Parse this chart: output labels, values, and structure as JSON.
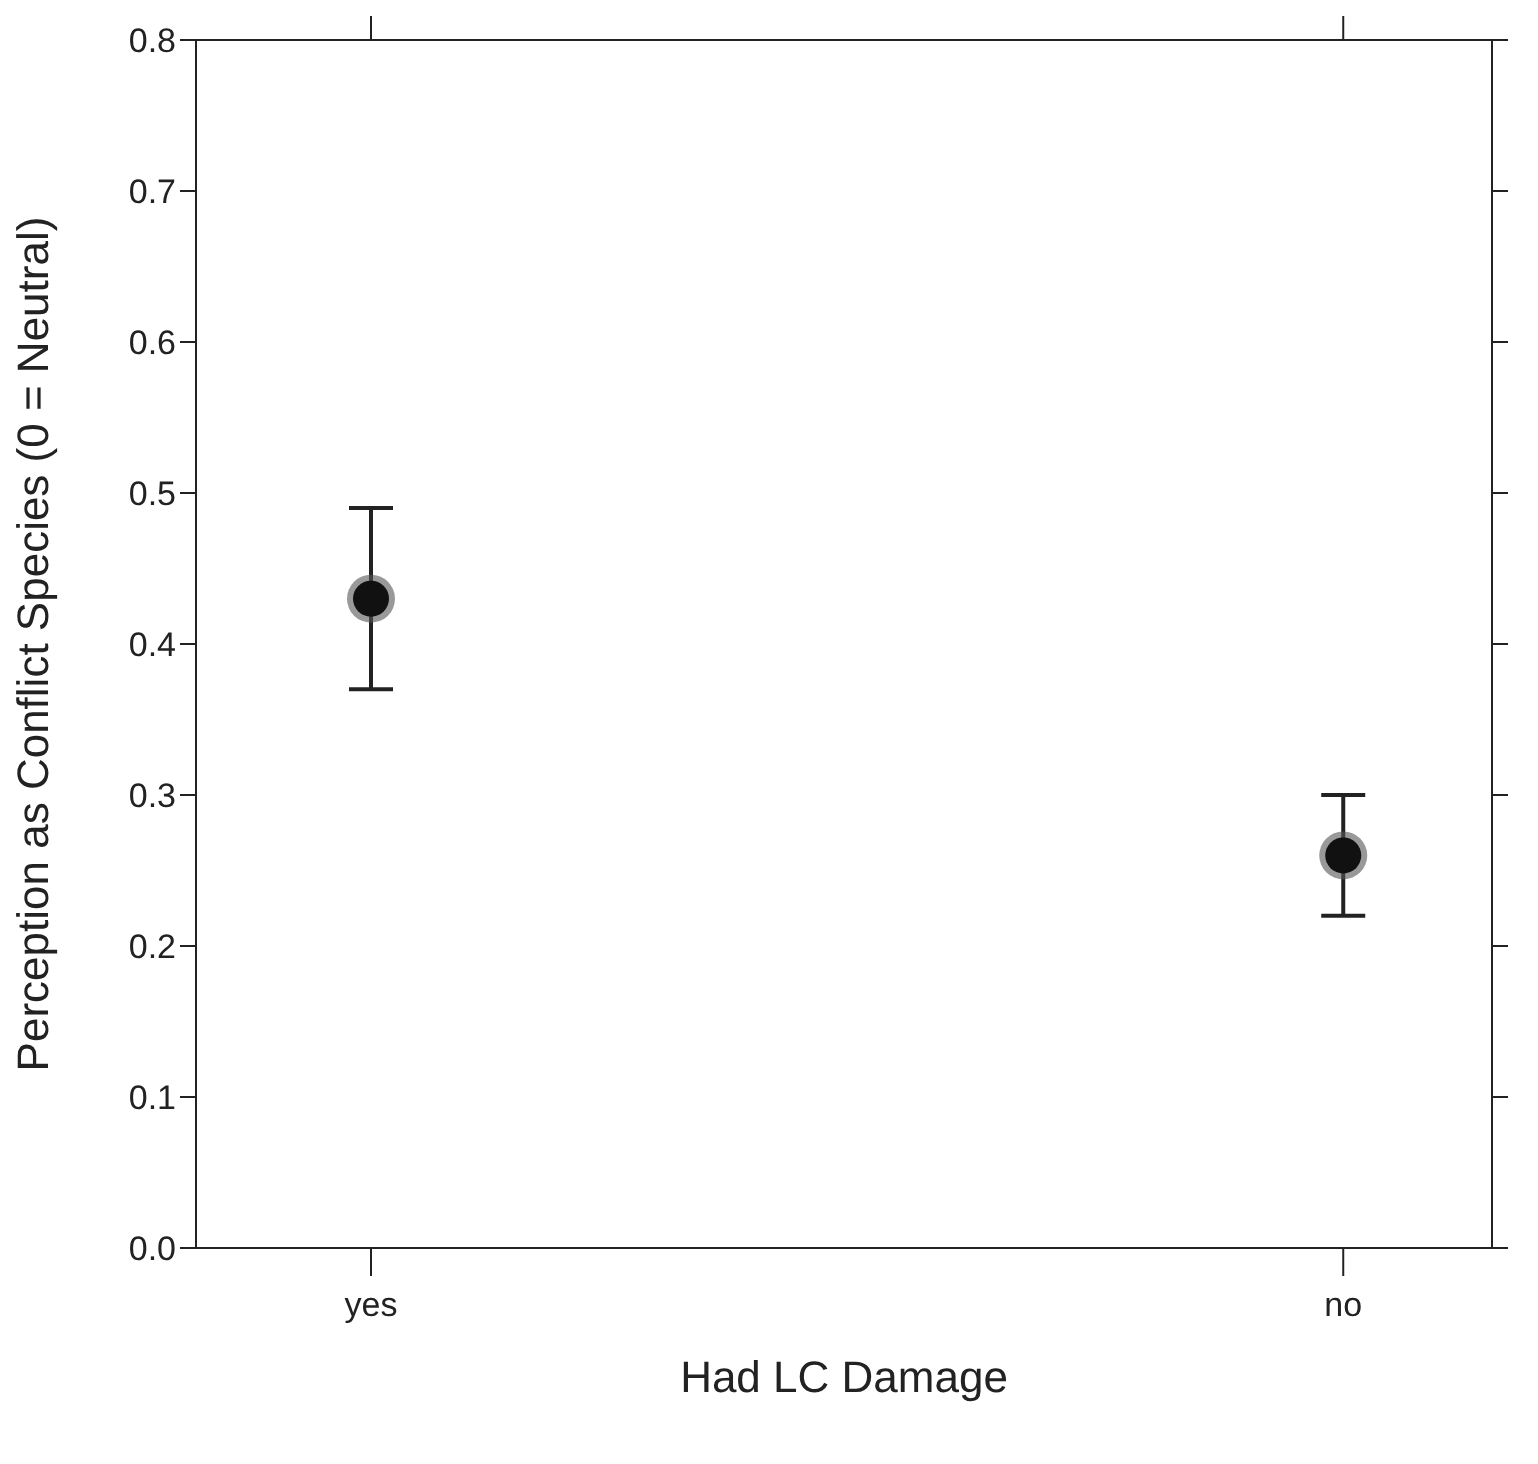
{
  "chart_data": {
    "type": "scatter",
    "xlabel": "Had LC Damage",
    "ylabel": "Perception as Conflict Species (0 = Neutral)",
    "categories": [
      "yes",
      "no"
    ],
    "series": [
      {
        "color": "#111111",
        "values": [
          0.43,
          0.26
        ],
        "errors": [
          [
            0.37,
            0.49
          ],
          [
            0.22,
            0.3
          ]
        ]
      }
    ],
    "ylim": [
      0,
      0.8
    ],
    "yticks": [
      {
        "value": 0,
        "label": "0.0"
      },
      0.1,
      0.2,
      0.3,
      0.4,
      0.5,
      0.6,
      0.7,
      0.8
    ],
    "legend": false,
    "marker": "circle"
  }
}
